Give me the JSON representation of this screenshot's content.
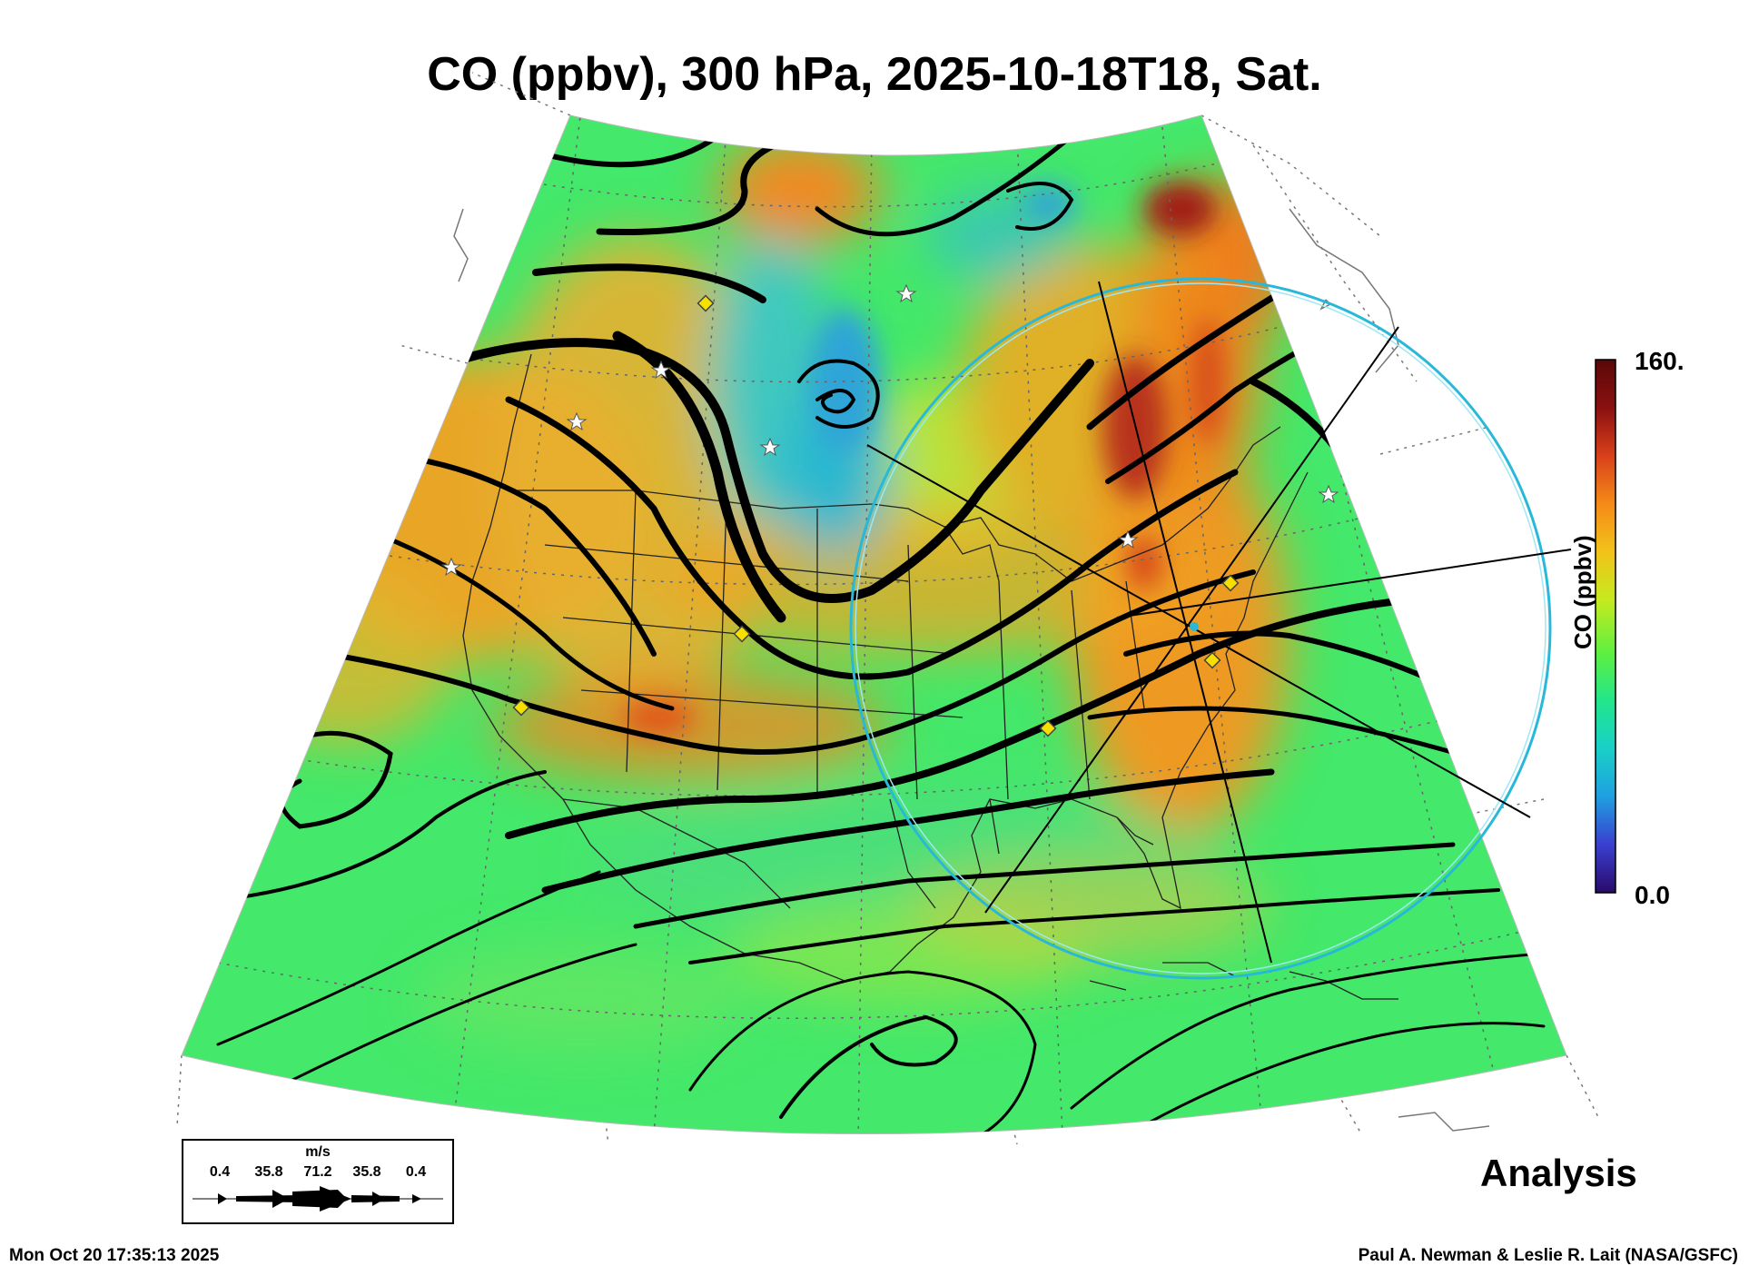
{
  "title": "CO (ppbv), 300 hPa, 2025-10-18T18, Sat.",
  "colorbar": {
    "max_label": "160.",
    "min_label": "0.0",
    "axis_label": "CO (ppbv)",
    "range": [
      0,
      160
    ],
    "stops": [
      "#2a0a6a",
      "#3a3fd0",
      "#1f9fe0",
      "#19d0c8",
      "#22e68a",
      "#5ef040",
      "#c6ea1e",
      "#f2c21a",
      "#f58a18",
      "#d8401a",
      "#8a1010",
      "#5a0808"
    ]
  },
  "wind_legend": {
    "unit": "m/s",
    "values": [
      "0.4",
      "35.8",
      "71.2",
      "35.8",
      "0.4"
    ]
  },
  "analysis_label": "Analysis",
  "timestamp": "Mon Oct 20 17:35:13 2025",
  "credit": "Paul A. Newman & Leslie R. Lait (NASA/GSFC)",
  "palette": {
    "background_field": "#3fe26a",
    "high_co": "#f29a1c",
    "very_high_co": "#b01e10",
    "low_co": "#2fb8c8",
    "streamline": "#000000",
    "range_ring": "#2ab8d8",
    "station_marker": "#f5e000"
  }
}
